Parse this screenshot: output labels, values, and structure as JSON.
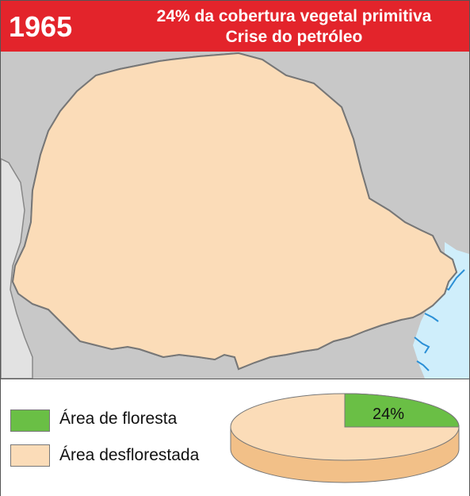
{
  "header": {
    "year": "1965",
    "title_line1": "24% da cobertura vegetal primitiva",
    "title_line2": "Crise do petróleo",
    "bg_color": "#e3242b"
  },
  "legend": {
    "forest_label": "Área de floresta",
    "deforested_label": "Área desflorestada",
    "forest_color": "#6abf45",
    "deforested_color": "#fbdcb8"
  },
  "pie": {
    "forest_percent": 24,
    "forest_label": "24%"
  },
  "colors": {
    "water": "#cfeefb",
    "neighbors": "#c8c8c8",
    "neighbors_light": "#e0e0e0"
  }
}
